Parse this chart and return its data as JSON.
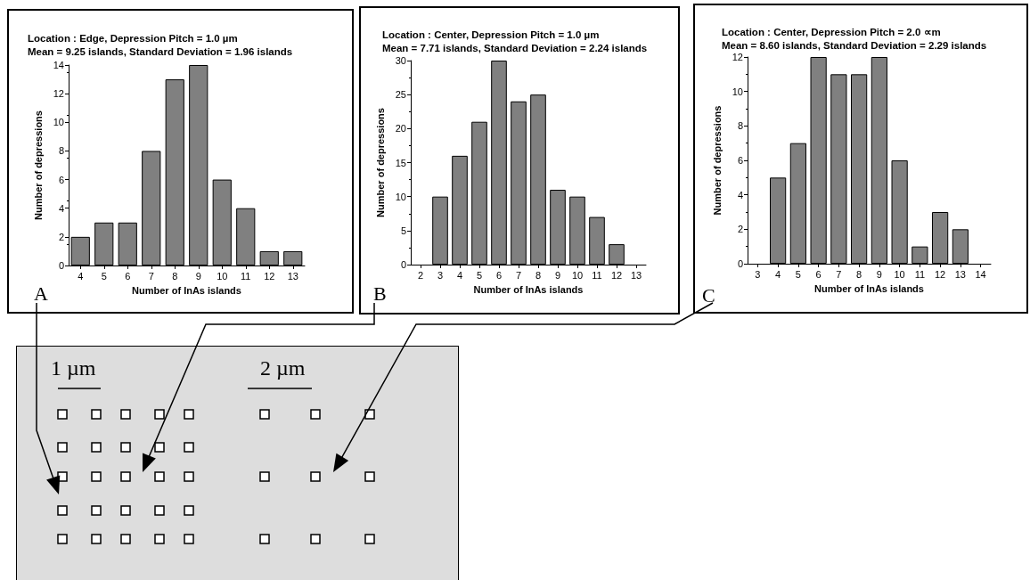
{
  "chart_data": [
    {
      "type": "bar",
      "title": "Location : Edge, Depression Pitch = 1.0 µm",
      "subtitle": "Mean = 9.25 islands, Standard Deviation = 1.96 islands",
      "xlabel": "Number of InAs islands",
      "ylabel": "Number of depressions",
      "annotations": [
        "A"
      ],
      "color": "#808080",
      "x": [
        4,
        5,
        6,
        7,
        8,
        9,
        10,
        11,
        12,
        13
      ],
      "values": [
        2,
        3,
        3,
        8,
        13,
        14,
        6,
        4,
        1,
        1
      ],
      "xlim": [
        3.5,
        13.5
      ],
      "xticks": [
        4,
        5,
        6,
        7,
        8,
        9,
        10,
        11,
        12,
        13
      ],
      "ylim": [
        0,
        14
      ],
      "yticks": [
        0,
        2,
        4,
        6,
        8,
        10,
        12,
        14
      ]
    },
    {
      "type": "bar",
      "title": "Location : Center, Depression Pitch = 1.0 µm",
      "subtitle": "Mean = 7.71 islands, Standard Deviation = 2.24 islands",
      "xlabel": "Number of InAs islands",
      "ylabel": "Number of depressions",
      "annotations": [
        "B"
      ],
      "color": "#808080",
      "x": [
        3,
        4,
        5,
        6,
        7,
        8,
        9,
        10,
        11,
        12
      ],
      "values": [
        10,
        16,
        21,
        30,
        24,
        25,
        11,
        10,
        7,
        3
      ],
      "xlim": [
        1.5,
        13.5
      ],
      "xticks": [
        2,
        3,
        4,
        5,
        6,
        7,
        8,
        9,
        10,
        11,
        12,
        13
      ],
      "ylim": [
        0,
        30
      ],
      "yticks": [
        0,
        5,
        10,
        15,
        20,
        25,
        30
      ]
    },
    {
      "type": "bar",
      "title": "Location : Center, Depression Pitch = 2.0 ∝m",
      "subtitle": "Mean = 8.60 islands, Standard Deviation = 2.29 islands",
      "xlabel": "Number of InAs islands",
      "ylabel": "Number of depressions",
      "annotations": [
        "C"
      ],
      "color": "#808080",
      "x": [
        4,
        5,
        6,
        7,
        8,
        9,
        10,
        11,
        12,
        13
      ],
      "values": [
        5,
        7,
        12,
        11,
        11,
        12,
        6,
        1,
        3,
        2
      ],
      "xlim": [
        2.5,
        14.5
      ],
      "xticks": [
        3,
        4,
        5,
        6,
        7,
        8,
        9,
        10,
        11,
        12,
        13,
        14
      ],
      "ylim": [
        0,
        12
      ],
      "yticks": [
        0,
        2,
        4,
        6,
        8,
        10,
        12
      ]
    },
    {
      "type": "other",
      "annotations": [
        "1 µm",
        "2 µm"
      ]
    }
  ]
}
